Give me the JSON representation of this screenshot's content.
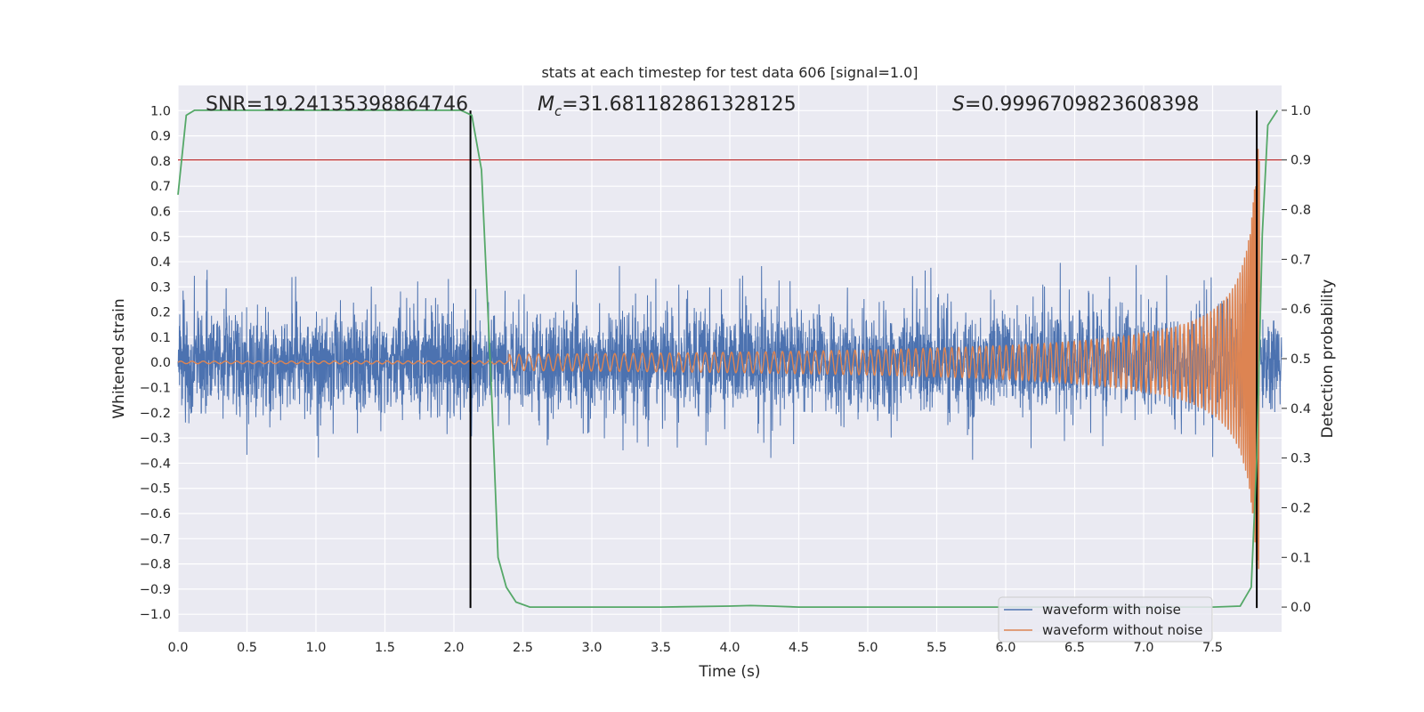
{
  "chart_data": {
    "type": "line",
    "title": "stats at each timestep for test data 606 [signal=1.0]",
    "xlabel": "Time (s)",
    "ylabel": "Whitened strain",
    "y2label": "Detection probability",
    "xlim": [
      0.0,
      8.0
    ],
    "ylim": [
      -1.07,
      1.1
    ],
    "y2lim": [
      -0.05,
      1.05
    ],
    "xticks": [
      0.0,
      0.5,
      1.0,
      1.5,
      2.0,
      2.5,
      3.0,
      3.5,
      4.0,
      4.5,
      5.0,
      5.5,
      6.0,
      6.5,
      7.0,
      7.5
    ],
    "yticks": [
      -1.0,
      -0.9,
      -0.8,
      -0.7,
      -0.6,
      -0.5,
      -0.4,
      -0.3,
      -0.2,
      -0.1,
      0.0,
      0.1,
      0.2,
      0.3,
      0.4,
      0.5,
      0.6,
      0.7,
      0.8,
      0.9,
      1.0
    ],
    "y2ticks": [
      0.0,
      0.1,
      0.2,
      0.3,
      0.4,
      0.5,
      0.6,
      0.7,
      0.8,
      0.9,
      1.0
    ],
    "grid": true,
    "legend_position": "lower-right",
    "annotations": {
      "snr": "SNR=19.24135398864746",
      "mc_symbol": "M",
      "mc_sub": "c",
      "mc_value": "=31.681182861328125",
      "s_symbol": "S",
      "s_value": "=0.9996709823608398"
    },
    "threshold": {
      "axis": "right",
      "value": 0.9,
      "color": "#c03d3e"
    },
    "vertical_markers": [
      {
        "x": 2.12,
        "ymin": -0.975,
        "ymax": 1.0,
        "color": "#000000"
      },
      {
        "x": 7.82,
        "ymin": -0.975,
        "ymax": 1.0,
        "color": "#000000"
      }
    ],
    "series": [
      {
        "name": "waveform with noise",
        "color": "#4c72b0",
        "kind": "noisy-strain",
        "typical_abs": 0.18,
        "occasional_peak": 0.42,
        "max_abs": 0.5
      },
      {
        "name": "waveform without noise",
        "color": "#dd8452",
        "kind": "chirp",
        "start_time": 2.4,
        "merger_time": 7.82,
        "peak_amplitude": 0.85
      },
      {
        "name": "detection probability",
        "axis": "right",
        "color": "#55a868",
        "x": [
          0.0,
          0.06,
          0.12,
          0.2,
          0.5,
          1.0,
          1.5,
          1.9,
          2.05,
          2.13,
          2.2,
          2.27,
          2.32,
          2.38,
          2.45,
          2.55,
          2.7,
          3.0,
          3.5,
          4.0,
          4.15,
          4.3,
          4.5,
          5.0,
          5.5,
          6.0,
          6.5,
          7.0,
          7.5,
          7.7,
          7.78,
          7.82,
          7.86,
          7.9,
          7.97
        ],
        "y": [
          0.83,
          0.99,
          1.0,
          1.0,
          1.0,
          1.0,
          1.0,
          1.0,
          1.0,
          0.99,
          0.88,
          0.45,
          0.1,
          0.04,
          0.01,
          0.0,
          0.0,
          0.0,
          0.0,
          0.002,
          0.003,
          0.002,
          0.0,
          0.0,
          0.0,
          0.0,
          0.0,
          0.0,
          0.0,
          0.002,
          0.04,
          0.3,
          0.75,
          0.97,
          1.0
        ]
      }
    ]
  }
}
